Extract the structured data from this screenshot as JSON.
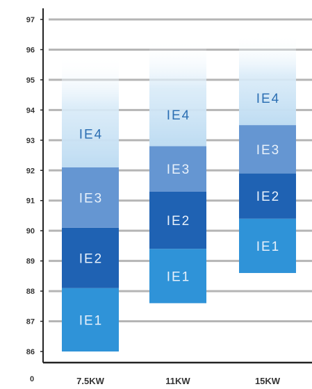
{
  "chart_data": {
    "type": "bar",
    "subtype": "stacked-range",
    "title": "",
    "xlabel": "",
    "ylabel": "",
    "ylim": [
      86,
      97
    ],
    "yticks": [
      86,
      87,
      88,
      89,
      90,
      91,
      92,
      93,
      94,
      95,
      96,
      97
    ],
    "origin_label": "0",
    "grid": true,
    "legend": "none",
    "categories": [
      "7.5KW",
      "11KW",
      "15KW"
    ],
    "bars": [
      {
        "category": "7.5KW",
        "segments": [
          {
            "label": "IE1",
            "from": 86.0,
            "to": 88.1
          },
          {
            "label": "IE2",
            "from": 88.1,
            "to": 90.1
          },
          {
            "label": "IE3",
            "from": 90.1,
            "to": 92.1
          },
          {
            "label": "IE4",
            "from": 92.1,
            "to": 95.8
          }
        ]
      },
      {
        "category": "11KW",
        "segments": [
          {
            "label": "IE1",
            "from": 87.6,
            "to": 89.4
          },
          {
            "label": "IE2",
            "from": 89.4,
            "to": 91.3
          },
          {
            "label": "IE3",
            "from": 91.3,
            "to": 92.8
          },
          {
            "label": "IE4",
            "from": 92.8,
            "to": 96.3
          }
        ]
      },
      {
        "category": "15KW",
        "segments": [
          {
            "label": "IE1",
            "from": 88.6,
            "to": 90.4
          },
          {
            "label": "IE2",
            "from": 90.4,
            "to": 91.9
          },
          {
            "label": "IE3",
            "from": 91.9,
            "to": 93.5
          },
          {
            "label": "IE4",
            "from": 93.5,
            "to": 96.5
          }
        ]
      }
    ],
    "colors": {
      "IE1": "#2f93d8",
      "IE2": "#1f62b3",
      "IE3": "#6596d2",
      "IE4": "#bedcf2",
      "label_light": "#e8f1fb",
      "label_dark": "#2c6fb3",
      "grid": "#b5b5b5",
      "axis": "#222222"
    }
  }
}
